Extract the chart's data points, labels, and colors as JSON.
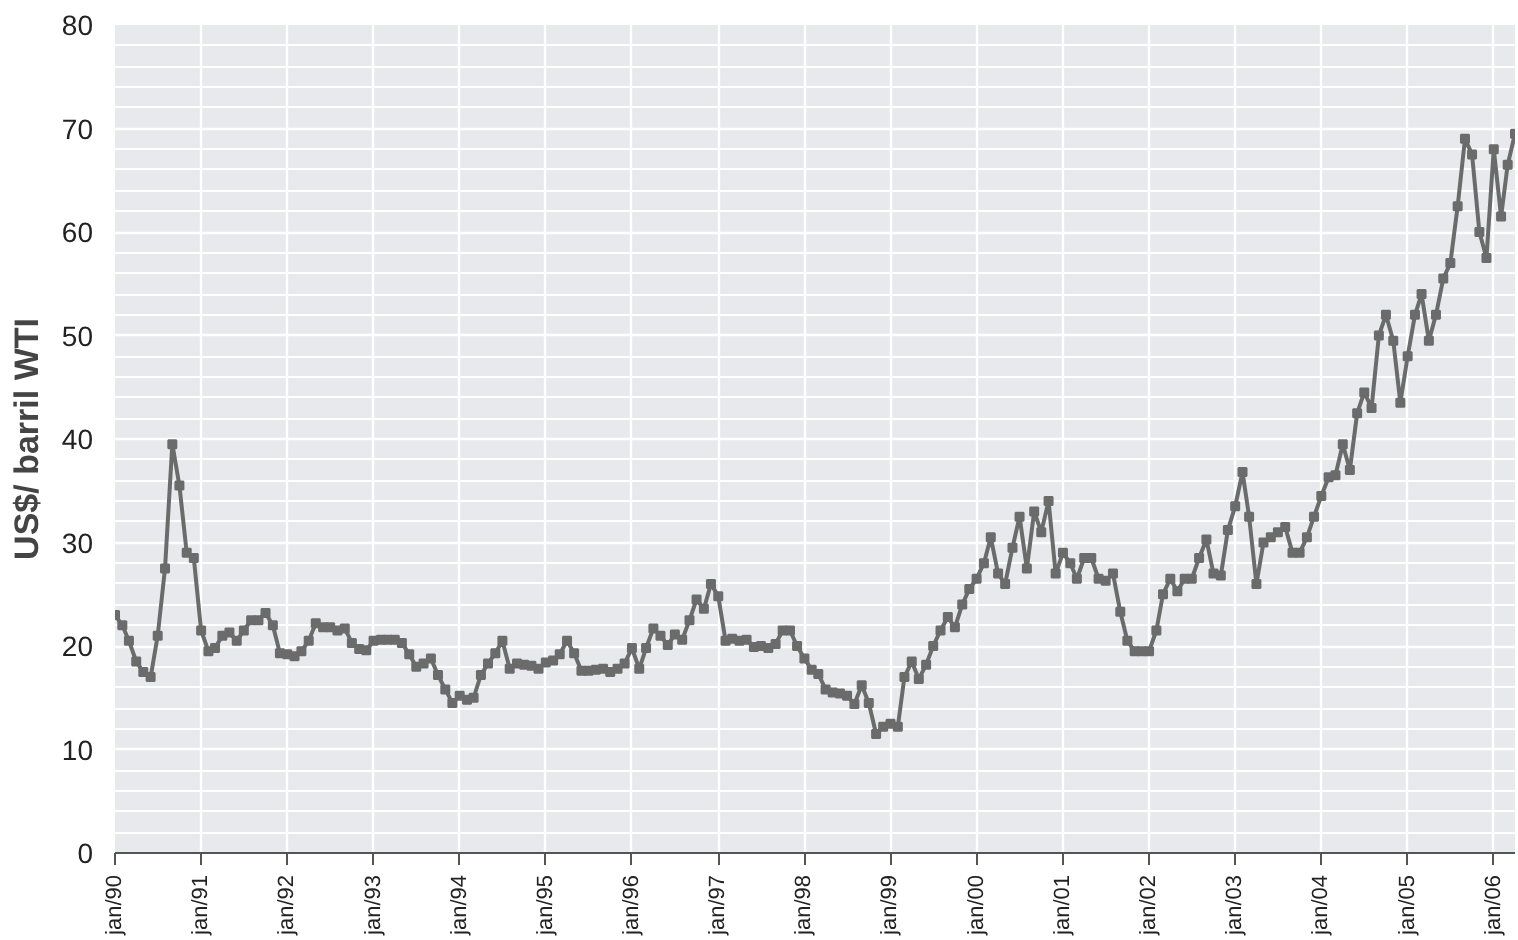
{
  "chart_data": {
    "type": "line",
    "ylabel": "US$/ barril WTI",
    "x": [
      "1990-01",
      "1990-02",
      "1990-03",
      "1990-04",
      "1990-05",
      "1990-06",
      "1990-07",
      "1990-08",
      "1990-09",
      "1990-10",
      "1990-11",
      "1990-12",
      "1991-01",
      "1991-02",
      "1991-03",
      "1991-04",
      "1991-05",
      "1991-06",
      "1991-07",
      "1991-08",
      "1991-09",
      "1991-10",
      "1991-11",
      "1991-12",
      "1992-01",
      "1992-02",
      "1992-03",
      "1992-04",
      "1992-05",
      "1992-06",
      "1992-07",
      "1992-08",
      "1992-09",
      "1992-10",
      "1992-11",
      "1992-12",
      "1993-01",
      "1993-02",
      "1993-03",
      "1993-04",
      "1993-05",
      "1993-06",
      "1993-07",
      "1993-08",
      "1993-09",
      "1993-10",
      "1993-11",
      "1993-12",
      "1994-01",
      "1994-02",
      "1994-03",
      "1994-04",
      "1994-05",
      "1994-06",
      "1994-07",
      "1994-08",
      "1994-09",
      "1994-10",
      "1994-11",
      "1994-12",
      "1995-01",
      "1995-02",
      "1995-03",
      "1995-04",
      "1995-05",
      "1995-06",
      "1995-07",
      "1995-08",
      "1995-09",
      "1995-10",
      "1995-11",
      "1995-12",
      "1996-01",
      "1996-02",
      "1996-03",
      "1996-04",
      "1996-05",
      "1996-06",
      "1996-07",
      "1996-08",
      "1996-09",
      "1996-10",
      "1996-11",
      "1996-12",
      "1997-01",
      "1997-02",
      "1997-03",
      "1997-04",
      "1997-05",
      "1997-06",
      "1997-07",
      "1997-08",
      "1997-09",
      "1997-10",
      "1997-11",
      "1997-12",
      "1998-01",
      "1998-02",
      "1998-03",
      "1998-04",
      "1998-05",
      "1998-06",
      "1998-07",
      "1998-08",
      "1998-09",
      "1998-10",
      "1998-11",
      "1998-12",
      "1999-01",
      "1999-02",
      "1999-03",
      "1999-04",
      "1999-05",
      "1999-06",
      "1999-07",
      "1999-08",
      "1999-09",
      "1999-10",
      "1999-11",
      "1999-12",
      "2000-01",
      "2000-02",
      "2000-03",
      "2000-04",
      "2000-05",
      "2000-06",
      "2000-07",
      "2000-08",
      "2000-09",
      "2000-10",
      "2000-11",
      "2000-12",
      "2001-01",
      "2001-02",
      "2001-03",
      "2001-04",
      "2001-05",
      "2001-06",
      "2001-07",
      "2001-08",
      "2001-09",
      "2001-10",
      "2001-11",
      "2001-12",
      "2002-01",
      "2002-02",
      "2002-03",
      "2002-04",
      "2002-05",
      "2002-06",
      "2002-07",
      "2002-08",
      "2002-09",
      "2002-10",
      "2002-11",
      "2002-12",
      "2003-01",
      "2003-02",
      "2003-03",
      "2003-04",
      "2003-05",
      "2003-06",
      "2003-07",
      "2003-08",
      "2003-09",
      "2003-10",
      "2003-11",
      "2003-12",
      "2004-01",
      "2004-02",
      "2004-03",
      "2004-04",
      "2004-05",
      "2004-06",
      "2004-07",
      "2004-08",
      "2004-09",
      "2004-10",
      "2004-11",
      "2004-12",
      "2005-01",
      "2005-02",
      "2005-03",
      "2005-04",
      "2005-05",
      "2005-06",
      "2005-07",
      "2005-08",
      "2005-09",
      "2005-10",
      "2005-11",
      "2005-12",
      "2006-01",
      "2006-02",
      "2006-03",
      "2006-04"
    ],
    "series": [
      {
        "color": "#6b6b6b",
        "values": [
          23,
          22,
          20.5,
          18.5,
          17.5,
          17,
          21,
          27.5,
          39.5,
          35.5,
          29,
          28.5,
          21.5,
          19.5,
          19.8,
          21,
          21.3,
          20.5,
          21.5,
          22.5,
          22.5,
          23.2,
          22,
          19.3,
          19.2,
          19,
          19.5,
          20.5,
          22.2,
          21.8,
          21.8,
          21.5,
          21.7,
          20.3,
          19.7,
          19.6,
          20.5,
          20.6,
          20.6,
          20.6,
          20.3,
          19.2,
          18,
          18.3,
          18.8,
          17.2,
          15.8,
          14.5,
          15.2,
          14.8,
          15,
          17.2,
          18.3,
          19.3,
          20.5,
          17.8,
          18.3,
          18.2,
          18.1,
          17.8,
          18.4,
          18.6,
          19.2,
          20.5,
          19.3,
          17.6,
          17.6,
          17.7,
          17.8,
          17.5,
          17.8,
          18.3,
          19.8,
          17.8,
          19.8,
          21.7,
          21,
          20.1,
          21.1,
          20.6,
          22.5,
          24.5,
          23.6,
          26,
          24.8,
          20.5,
          20.7,
          20.5,
          20.6,
          19.9,
          20,
          19.8,
          20.2,
          21.5,
          21.5,
          20,
          18.8,
          17.7,
          17.3,
          15.8,
          15.5,
          15.4,
          15.2,
          14.4,
          16.2,
          14.5,
          11.5,
          12.2,
          12.5,
          12.2,
          17,
          18.5,
          16.8,
          18.2,
          20,
          21.5,
          22.8,
          21.8,
          24,
          25.5,
          26.5,
          28,
          30.5,
          27,
          26,
          29.5,
          32.5,
          27.5,
          33,
          31,
          34,
          27,
          29,
          28,
          26.5,
          28.5,
          28.5,
          26.5,
          26.3,
          27,
          23.3,
          20.5,
          19.5,
          19.5,
          19.5,
          21.5,
          25,
          26.5,
          25.3,
          26.5,
          26.5,
          28.5,
          30.3,
          27,
          26.8,
          31.2,
          33.5,
          36.8,
          32.5,
          26,
          30,
          30.5,
          31,
          31.5,
          29,
          29,
          30.5,
          32.5,
          34.5,
          36.3,
          36.5,
          39.5,
          37,
          42.5,
          44.5,
          43,
          50,
          52,
          49.5,
          43.5,
          48,
          52,
          54,
          49.5,
          52,
          55.5,
          57,
          62.5,
          69,
          67.5,
          60,
          57.5,
          68,
          61.5,
          66.5,
          69.5
        ]
      }
    ],
    "xlim": [
      "1990-01",
      "2006-04"
    ],
    "xticks": [
      {
        "value": "1990-01",
        "label": "jan/90"
      },
      {
        "value": "1991-01",
        "label": "jan/91"
      },
      {
        "value": "1992-01",
        "label": "jan/92"
      },
      {
        "value": "1993-01",
        "label": "jan/93"
      },
      {
        "value": "1994-01",
        "label": "jan/94"
      },
      {
        "value": "1995-01",
        "label": "jan/95"
      },
      {
        "value": "1996-01",
        "label": "jan/96"
      },
      {
        "value": "1997-01",
        "label": "jan/97"
      },
      {
        "value": "1998-01",
        "label": "jan/98"
      },
      {
        "value": "1999-01",
        "label": "jan/99"
      },
      {
        "value": "2000-01",
        "label": "jan/00"
      },
      {
        "value": "2001-01",
        "label": "jan/01"
      },
      {
        "value": "2002-01",
        "label": "jan/02"
      },
      {
        "value": "2003-01",
        "label": "jan/03"
      },
      {
        "value": "2004-01",
        "label": "jan/04"
      },
      {
        "value": "2005-01",
        "label": "jan/05"
      },
      {
        "value": "2006-01",
        "label": "jan/06"
      }
    ],
    "ylim": [
      0,
      80
    ],
    "yticks": [
      0,
      10,
      20,
      30,
      40,
      50,
      60,
      70,
      80
    ],
    "grid": true,
    "marker": "square",
    "line_style": "solid"
  }
}
